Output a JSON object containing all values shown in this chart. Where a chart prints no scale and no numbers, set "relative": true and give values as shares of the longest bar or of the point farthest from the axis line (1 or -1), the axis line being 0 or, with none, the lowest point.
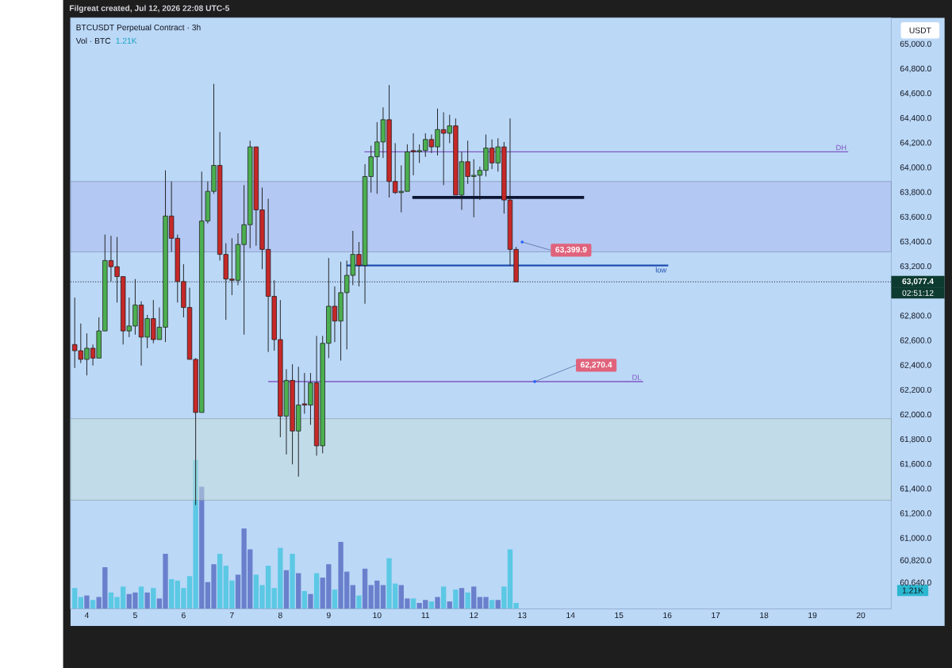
{
  "chart_data": [
    {
      "type": "candlestick",
      "title": "BTCUSDT Perpetual Contract · 3h",
      "ylabel": "USDT",
      "annotations": [
        "Filgreat created, Jul 12, 2026 22:08 UTC-5",
        "02:51:12",
        {
          "text": "63,399.9",
          "x": 13,
          "y": 63399.9
        },
        {
          "text": "62,270.4",
          "x": 13.26,
          "y": 62270.4
        }
      ],
      "x": [
        3.75,
        3.875,
        4,
        4.125,
        4.25,
        4.375,
        4.5,
        4.625,
        4.75,
        4.875,
        5,
        5.125,
        5.25,
        5.375,
        5.5,
        5.625,
        5.75,
        5.875,
        6,
        6.125,
        6.25,
        6.375,
        6.5,
        6.625,
        6.75,
        6.875,
        7,
        7.125,
        7.25,
        7.375,
        7.5,
        7.625,
        7.75,
        7.875,
        8,
        8.125,
        8.25,
        8.375,
        8.5,
        8.625,
        8.75,
        8.875,
        9,
        9.125,
        9.25,
        9.375,
        9.5,
        9.625,
        9.75,
        9.875,
        10,
        10.125,
        10.25,
        10.375,
        10.5,
        10.625,
        10.75,
        10.875,
        11,
        11.125,
        11.25,
        11.375,
        11.5,
        11.625,
        11.75,
        11.875,
        12,
        12.125,
        12.25,
        12.375,
        12.5,
        12.625,
        12.75,
        12.875
      ],
      "ohlc": [
        [
          62570,
          62950,
          62380,
          62520
        ],
        [
          62520,
          62740,
          62420,
          62450
        ],
        [
          62450,
          62660,
          62320,
          62540
        ],
        [
          62540,
          62570,
          62400,
          62460
        ],
        [
          62460,
          62790,
          62460,
          62680
        ],
        [
          62680,
          63460,
          62680,
          63250
        ],
        [
          63250,
          63450,
          63080,
          63200
        ],
        [
          63200,
          63440,
          62910,
          63120
        ],
        [
          63120,
          63120,
          62570,
          62680
        ],
        [
          62680,
          62950,
          62630,
          62720
        ],
        [
          62720,
          63100,
          62650,
          62890
        ],
        [
          62890,
          62920,
          62400,
          62630
        ],
        [
          62630,
          62810,
          62540,
          62780
        ],
        [
          62780,
          62930,
          62580,
          62610
        ],
        [
          62610,
          62870,
          62610,
          62710
        ],
        [
          62710,
          63980,
          62590,
          63610
        ],
        [
          63610,
          63890,
          63320,
          63430
        ],
        [
          63430,
          63460,
          62910,
          63080
        ],
        [
          63080,
          63220,
          62790,
          62870
        ],
        [
          62870,
          63030,
          62450,
          62450
        ],
        [
          62450,
          62460,
          61270,
          62020
        ],
        [
          62020,
          63970,
          62020,
          63570
        ],
        [
          63570,
          63890,
          63550,
          63810
        ],
        [
          63810,
          64680,
          63790,
          64020
        ],
        [
          64020,
          64290,
          63250,
          63300
        ],
        [
          63300,
          63390,
          62770,
          63100
        ],
        [
          63100,
          63430,
          62970,
          63090
        ],
        [
          63090,
          63470,
          63050,
          63380
        ],
        [
          63380,
          63860,
          62650,
          63540
        ],
        [
          63540,
          64220,
          63350,
          64170
        ],
        [
          64170,
          64170,
          63370,
          63660
        ],
        [
          63660,
          63840,
          63180,
          63340
        ],
        [
          63340,
          63750,
          62510,
          62960
        ],
        [
          62960,
          63090,
          62520,
          62610
        ],
        [
          62610,
          62930,
          61820,
          61990
        ],
        [
          61990,
          62370,
          61680,
          62280
        ],
        [
          62280,
          62410,
          61600,
          61870
        ],
        [
          61870,
          62390,
          61500,
          62080
        ],
        [
          62090,
          62340,
          62010,
          62080
        ],
        [
          62080,
          62340,
          61920,
          62260
        ],
        [
          62260,
          62640,
          61670,
          61750
        ],
        [
          61750,
          62640,
          61690,
          62580
        ],
        [
          62580,
          63270,
          62460,
          62880
        ],
        [
          62880,
          63040,
          62590,
          62760
        ],
        [
          62760,
          63240,
          62440,
          62990
        ],
        [
          62990,
          63250,
          62530,
          63130
        ],
        [
          63130,
          63490,
          63050,
          63300
        ],
        [
          63300,
          63400,
          63040,
          63210
        ],
        [
          63210,
          64030,
          62900,
          63930
        ],
        [
          63930,
          64180,
          63800,
          64090
        ],
        [
          64090,
          64370,
          63790,
          64210
        ],
        [
          64210,
          64490,
          64080,
          64390
        ],
        [
          64390,
          64670,
          63760,
          63890
        ],
        [
          63890,
          64200,
          63790,
          63800
        ],
        [
          63800,
          64020,
          63640,
          63810
        ],
        [
          63810,
          64190,
          63810,
          64130
        ],
        [
          64140,
          64280,
          63940,
          64130
        ],
        [
          64130,
          64190,
          64040,
          64140
        ],
        [
          64140,
          64280,
          64090,
          64230
        ],
        [
          64230,
          64270,
          64120,
          64170
        ],
        [
          64170,
          64480,
          64100,
          64310
        ],
        [
          64310,
          64450,
          63860,
          64280
        ],
        [
          64280,
          64430,
          64200,
          64340
        ],
        [
          64340,
          64400,
          63780,
          63780
        ],
        [
          63780,
          64130,
          63660,
          64050
        ],
        [
          64050,
          64220,
          63870,
          63930
        ],
        [
          63930,
          64070,
          63600,
          63940
        ],
        [
          63940,
          64010,
          63740,
          63980
        ],
        [
          63980,
          64270,
          63930,
          64160
        ],
        [
          64160,
          64230,
          63990,
          64040
        ],
        [
          64040,
          64240,
          63970,
          64170
        ],
        [
          64170,
          64210,
          63630,
          63740
        ],
        [
          63740,
          64400,
          63210,
          63340
        ],
        [
          63340,
          63360,
          63077.4,
          63077.4
        ]
      ],
      "colors": [
        "#C62828",
        "#C62828",
        "#4CAF50",
        "#C62828",
        "#4CAF50",
        "#4CAF50",
        "#C62828",
        "#C62828",
        "#C62828",
        "#4CAF50",
        "#4CAF50",
        "#C62828",
        "#4CAF50",
        "#C62828",
        "#4CAF50",
        "#4CAF50",
        "#C62828",
        "#C62828",
        "#C62828",
        "#C62828",
        "#C62828",
        "#4CAF50",
        "#4CAF50",
        "#4CAF50",
        "#C62828",
        "#C62828",
        "#C62828",
        "#4CAF50",
        "#4CAF50",
        "#4CAF50",
        "#C62828",
        "#C62828",
        "#C62828",
        "#C62828",
        "#C62828",
        "#4CAF50",
        "#C62828",
        "#4CAF50",
        "#C62828",
        "#4CAF50",
        "#C62828",
        "#4CAF50",
        "#4CAF50",
        "#C62828",
        "#4CAF50",
        "#4CAF50",
        "#4CAF50",
        "#C62828",
        "#4CAF50",
        "#4CAF50",
        "#4CAF50",
        "#4CAF50",
        "#C62828",
        "#C62828",
        "#4CAF50",
        "#4CAF50",
        "#C62828",
        "#4CAF50",
        "#4CAF50",
        "#C62828",
        "#4CAF50",
        "#C62828",
        "#4CAF50",
        "#C62828",
        "#4CAF50",
        "#C62828",
        "#4CAF50",
        "#4CAF50",
        "#4CAF50",
        "#C62828",
        "#4CAF50",
        "#C62828",
        "#C62828",
        "#C62828"
      ],
      "series": [
        {
          "type": "line",
          "name": "DH",
          "color": "#7E57C2",
          "x": [
            9.74,
            19.74
          ],
          "values": [
            64130,
            64130
          ]
        },
        {
          "type": "line",
          "name": "low",
          "color": "#1E4FB0",
          "x": [
            9.37,
            16.02
          ],
          "values": [
            63210,
            63210
          ]
        },
        {
          "type": "line",
          "color": "#0B1533",
          "x": [
            10.73,
            14.28
          ],
          "values": [
            63760,
            63760
          ]
        },
        {
          "type": "line",
          "name": "DL",
          "color": "#7E57C2",
          "x": [
            7.75,
            15.5
          ],
          "values": [
            62270,
            62270
          ]
        }
      ],
      "ref_lines": [
        {
          "axis": "y",
          "value": 63077.4,
          "label": "63,077.4",
          "color": "#131722",
          "line_style": "dotted"
        }
      ],
      "bands": [
        {
          "axis": "y",
          "from": 63320,
          "to": 63890,
          "color": "#B3C8F2"
        },
        {
          "axis": "y",
          "from": 61310,
          "to": 61970,
          "color": "#C1DBE9"
        }
      ],
      "xlim": [
        3.663,
        20.63
      ],
      "ylim": [
        60430,
        65215
      ],
      "xticks": [
        4,
        5,
        6,
        7,
        8,
        9,
        10,
        11,
        12,
        13,
        14,
        15,
        16,
        17,
        18,
        19,
        20
      ],
      "yticks": [
        {
          "value": 65000,
          "label": "65,000.0"
        },
        {
          "value": 64800,
          "label": "64,800.0"
        },
        {
          "value": 64600,
          "label": "64,600.0"
        },
        {
          "value": 64400,
          "label": "64,400.0"
        },
        {
          "value": 64200,
          "label": "64,200.0"
        },
        {
          "value": 64000,
          "label": "64,000.0"
        },
        {
          "value": 63800,
          "label": "63,800.0"
        },
        {
          "value": 63600,
          "label": "63,600.0"
        },
        {
          "value": 63400,
          "label": "63,400.0"
        },
        {
          "value": 63200,
          "label": "63,200.0"
        },
        {
          "value": 62800,
          "label": "62,800.0"
        },
        {
          "value": 62600,
          "label": "62,600.0"
        },
        {
          "value": 62400,
          "label": "62,400.0"
        },
        {
          "value": 62200,
          "label": "62,200.0"
        },
        {
          "value": 62000,
          "label": "62,000.0"
        },
        {
          "value": 61800,
          "label": "61,800.0"
        },
        {
          "value": 61600,
          "label": "61,600.0"
        },
        {
          "value": 61400,
          "label": "61,400.0"
        },
        {
          "value": 61200,
          "label": "61,200.0"
        },
        {
          "value": 61000,
          "label": "61,000.0"
        },
        {
          "value": 60820,
          "label": "60,820.0"
        },
        {
          "value": 60640,
          "label": "60,640.0"
        }
      ]
    },
    {
      "type": "bar",
      "title": "Vol · BTC",
      "subtitle": "1.21K",
      "annotations": [
        "1.21K"
      ],
      "relative": true,
      "tick_labels": false,
      "xlim": [
        3.663,
        20.63
      ],
      "x": [
        3.75,
        3.875,
        4,
        4.125,
        4.25,
        4.375,
        4.5,
        4.625,
        4.75,
        4.875,
        5,
        5.125,
        5.25,
        5.375,
        5.5,
        5.625,
        5.75,
        5.875,
        6,
        6.125,
        6.25,
        6.375,
        6.5,
        6.625,
        6.75,
        6.875,
        7,
        7.125,
        7.25,
        7.375,
        7.5,
        7.625,
        7.75,
        7.875,
        8,
        8.125,
        8.25,
        8.375,
        8.5,
        8.625,
        8.75,
        8.875,
        9,
        9.125,
        9.25,
        9.375,
        9.5,
        9.625,
        9.75,
        9.875,
        10,
        10.125,
        10.25,
        10.375,
        10.5,
        10.625,
        10.75,
        10.875,
        11,
        11.125,
        11.25,
        11.375,
        11.5,
        11.625,
        11.75,
        11.875,
        12,
        12.125,
        12.25,
        12.375,
        12.5,
        12.625,
        12.75,
        12.875
      ],
      "values": [
        0.14,
        0.08,
        0.09,
        0.06,
        0.08,
        0.28,
        0.11,
        0.08,
        0.15,
        0.1,
        0.11,
        0.15,
        0.11,
        0.14,
        0.07,
        0.37,
        0.2,
        0.19,
        0.14,
        0.22,
        1,
        0.82,
        0.18,
        0.3,
        0.37,
        0.29,
        0.19,
        0.23,
        0.54,
        0.4,
        0.23,
        0.16,
        0.29,
        0.14,
        0.41,
        0.26,
        0.37,
        0.24,
        0.12,
        0.1,
        0.24,
        0.21,
        0.3,
        0.13,
        0.45,
        0.25,
        0.16,
        0.09,
        0.27,
        0.16,
        0.19,
        0.16,
        0.34,
        0.17,
        0.16,
        0.07,
        0.07,
        0.04,
        0.06,
        0.05,
        0.08,
        0.15,
        0.05,
        0.13,
        0.14,
        0.11,
        0.15,
        0.08,
        0.08,
        0.06,
        0.06,
        0.15,
        0.4,
        0.04
      ],
      "colors": [
        "#5BC8E4",
        "#5BC8E4",
        "#6A80CC",
        "#5BC8E4",
        "#6A80CC",
        "#6A80CC",
        "#5BC8E4",
        "#5BC8E4",
        "#5BC8E4",
        "#6A80CC",
        "#6A80CC",
        "#5BC8E4",
        "#6A80CC",
        "#5BC8E4",
        "#6A80CC",
        "#6A80CC",
        "#5BC8E4",
        "#5BC8E4",
        "#5BC8E4",
        "#5BC8E4",
        "#5BC8E4",
        "#6A80CC",
        "#6A80CC",
        "#6A80CC",
        "#5BC8E4",
        "#5BC8E4",
        "#5BC8E4",
        "#6A80CC",
        "#6A80CC",
        "#6A80CC",
        "#5BC8E4",
        "#5BC8E4",
        "#5BC8E4",
        "#5BC8E4",
        "#5BC8E4",
        "#6A80CC",
        "#5BC8E4",
        "#6A80CC",
        "#5BC8E4",
        "#6A80CC",
        "#5BC8E4",
        "#6A80CC",
        "#6A80CC",
        "#5BC8E4",
        "#6A80CC",
        "#6A80CC",
        "#6A80CC",
        "#5BC8E4",
        "#6A80CC",
        "#6A80CC",
        "#6A80CC",
        "#6A80CC",
        "#5BC8E4",
        "#5BC8E4",
        "#6A80CC",
        "#6A80CC",
        "#5BC8E4",
        "#6A80CC",
        "#6A80CC",
        "#5BC8E4",
        "#6A80CC",
        "#5BC8E4",
        "#6A80CC",
        "#5BC8E4",
        "#6A80CC",
        "#5BC8E4",
        "#6A80CC",
        "#6A80CC",
        "#6A80CC",
        "#5BC8E4",
        "#6A80CC",
        "#5BC8E4",
        "#5BC8E4",
        "#5BC8E4"
      ]
    }
  ]
}
